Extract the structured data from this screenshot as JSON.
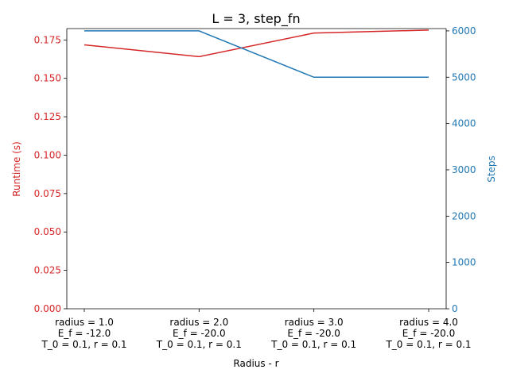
{
  "chart_data": {
    "type": "line",
    "title": "L = 3, step_fn",
    "xlabel": "Radius - r",
    "categories": [
      [
        "radius = 1.0",
        "E_f = -12.0",
        "T_0 = 0.1, r = 0.1"
      ],
      [
        "radius = 2.0",
        "E_f = -20.0",
        "T_0 = 0.1, r = 0.1"
      ],
      [
        "radius = 3.0",
        "E_f = -20.0",
        "T_0 = 0.1, r = 0.1"
      ],
      [
        "radius = 4.0",
        "E_f = -20.0",
        "T_0 = 0.1, r = 0.1"
      ]
    ],
    "series": [
      {
        "axis": "left",
        "color": "#d62728",
        "values": [
          0.1718,
          0.1641,
          0.1795,
          0.1814
        ]
      },
      {
        "axis": "right",
        "color": "#1f77b4",
        "values": [
          6000,
          6000,
          5000,
          5000
        ]
      }
    ],
    "y_left": {
      "label": "Runtime (s)",
      "color": "#d62728",
      "lim": [
        0,
        0.1824
      ],
      "ticks": [
        0,
        0.025,
        0.05,
        0.075,
        0.1,
        0.125,
        0.15,
        0.175
      ],
      "tick_labels": [
        "0.000",
        "0.025",
        "0.050",
        "0.075",
        "0.100",
        "0.125",
        "0.150",
        "0.175"
      ]
    },
    "y_right": {
      "label": "Steps",
      "color": "#1f77b4",
      "lim": [
        0,
        6050
      ],
      "ticks": [
        0,
        1000,
        2000,
        3000,
        4000,
        5000,
        6000
      ],
      "tick_labels": [
        "0",
        "1000",
        "2000",
        "3000",
        "4000",
        "5000",
        "6000"
      ]
    },
    "grid": false,
    "legend": "none"
  }
}
